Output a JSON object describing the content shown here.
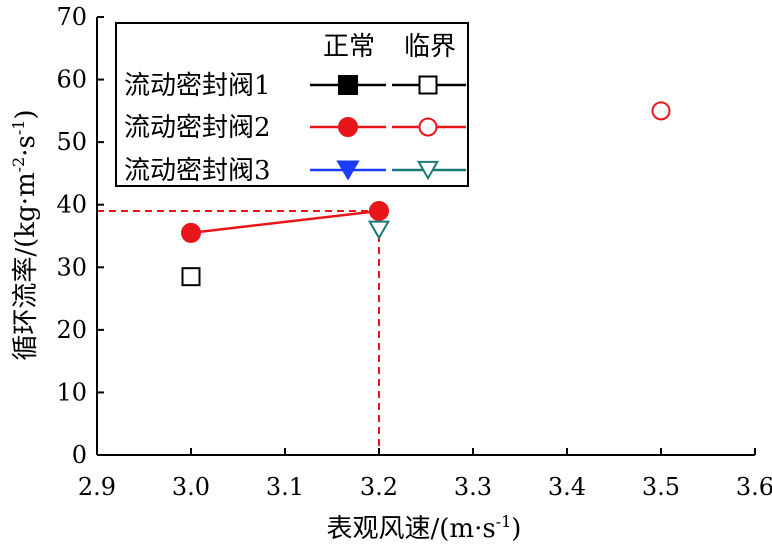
{
  "chart_data": {
    "type": "scatter",
    "title": "",
    "xlabel": "表观风速/(m·s",
    "xlabel_sup": "-1",
    "xlabel_end": ")",
    "ylabel": "循环流率/(kg·m",
    "ylabel_sup1": "-2",
    "ylabel_mid": "·s",
    "ylabel_sup2": "-1",
    "ylabel_end": ")",
    "xlim": [
      2.9,
      3.6
    ],
    "ylim": [
      0,
      70
    ],
    "xticks": [
      "2.9",
      "3.0",
      "3.1",
      "3.2",
      "3.3",
      "3.4",
      "3.5",
      "3.6"
    ],
    "yticks": [
      "0",
      "10",
      "20",
      "30",
      "40",
      "50",
      "60",
      "70"
    ],
    "grid": false,
    "legend_position": "top-left",
    "legend_header": {
      "normal": "正常",
      "critical": "临界"
    },
    "series": [
      {
        "name": "流动密封阀1",
        "normal_color": "#000000",
        "critical_color": "#000000",
        "marker": "square",
        "normal_points": [],
        "critical_points": [
          {
            "x": 3.0,
            "y": 28.5
          }
        ]
      },
      {
        "name": "流动密封阀2",
        "normal_color": "#e8161b",
        "critical_color": "#e8161b",
        "marker": "circle",
        "normal_points": [
          {
            "x": 3.0,
            "y": 35.5
          },
          {
            "x": 3.2,
            "y": 39.0
          }
        ],
        "critical_points": [
          {
            "x": 3.5,
            "y": 55.0
          }
        ]
      },
      {
        "name": "流动密封阀3",
        "normal_color": "#1a3cff",
        "critical_color": "#1d7a73",
        "marker": "triangle-down",
        "normal_points": [],
        "critical_points": [
          {
            "x": 3.2,
            "y": 36.0
          }
        ]
      }
    ],
    "annotations": {
      "reference_lines_color": "#e8161b",
      "reference_point": {
        "x": 3.2,
        "y": 39.0
      }
    }
  }
}
